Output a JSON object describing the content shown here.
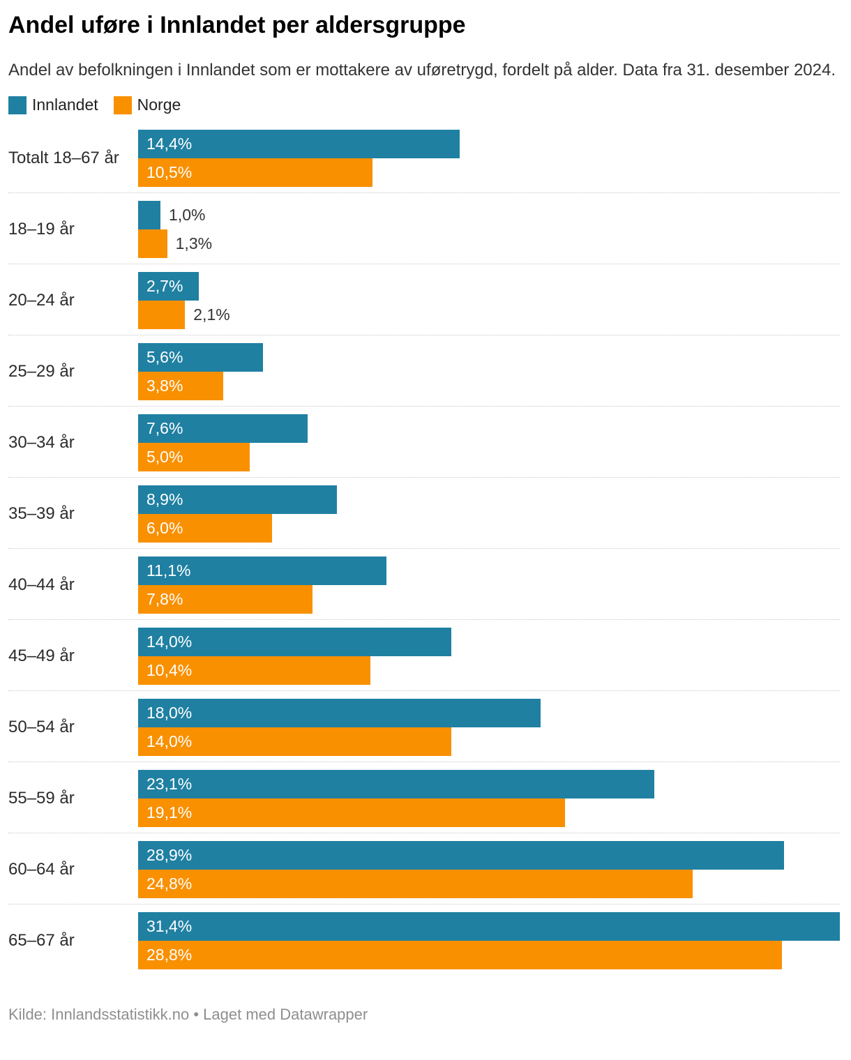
{
  "chart_data": {
    "type": "bar",
    "orientation": "horizontal",
    "title": "Andel uføre i Innlandet per aldersgruppe",
    "subtitle": "Andel av befolkningen i Innlandet som er mottakere av uføretrygd, fordelt på alder. Data fra 31. desember 2024.",
    "categories": [
      "Totalt 18–67 år",
      "18–19 år",
      "20–24 år",
      "25–29 år",
      "30–34 år",
      "35–39 år",
      "40–44 år",
      "45–49 år",
      "50–54 år",
      "55–59 år",
      "60–64 år",
      "65–67 år"
    ],
    "series": [
      {
        "name": "Innlandet",
        "color": "#1f80a2",
        "values": [
          14.4,
          1.0,
          2.7,
          5.6,
          7.6,
          8.9,
          11.1,
          14.0,
          18.0,
          23.1,
          28.9,
          31.4
        ],
        "labels": [
          "14,4%",
          "1,0%",
          "2,7%",
          "5,6%",
          "7,6%",
          "8,9%",
          "11,1%",
          "14,0%",
          "18,0%",
          "23,1%",
          "28,9%",
          "31,4%"
        ]
      },
      {
        "name": "Norge",
        "color": "#f99000",
        "values": [
          10.5,
          1.3,
          2.1,
          3.8,
          5.0,
          6.0,
          7.8,
          10.4,
          14.0,
          19.1,
          24.8,
          28.8
        ],
        "labels": [
          "10,5%",
          "1,3%",
          "2,1%",
          "3,8%",
          "5,0%",
          "6,0%",
          "7,8%",
          "10,4%",
          "14,0%",
          "19,1%",
          "24,8%",
          "28,8%"
        ]
      }
    ],
    "xlim": [
      0,
      31.4
    ],
    "value_suffix": "%",
    "grid": false,
    "legend_position": "top-left",
    "separator_style": "dotted"
  },
  "footer": {
    "text": "Kilde: Innlandsstatistikk.no • Laget med Datawrapper"
  }
}
